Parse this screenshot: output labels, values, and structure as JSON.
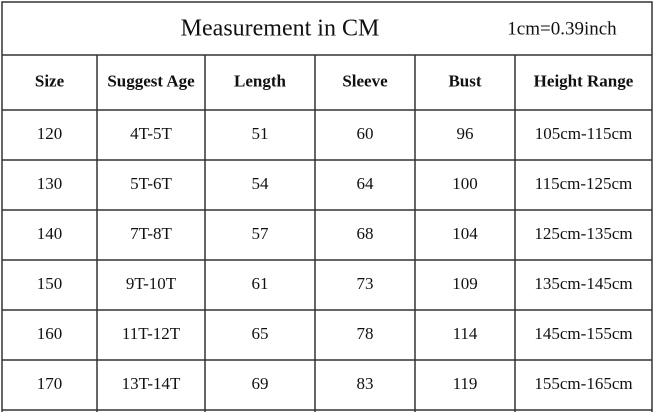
{
  "header": {
    "title": "Measurement in CM",
    "note": "1cm=0.39inch"
  },
  "table": {
    "columns": [
      "Size",
      "Suggest Age",
      "Length",
      "Sleeve",
      "Bust",
      "Height Range"
    ],
    "rows": [
      [
        "120",
        "4T-5T",
        "51",
        "60",
        "96",
        "105cm-115cm"
      ],
      [
        "130",
        "5T-6T",
        "54",
        "64",
        "100",
        "115cm-125cm"
      ],
      [
        "140",
        "7T-8T",
        "57",
        "68",
        "104",
        "125cm-135cm"
      ],
      [
        "150",
        "9T-10T",
        "61",
        "73",
        "109",
        "135cm-145cm"
      ],
      [
        "160",
        "11T-12T",
        "65",
        "78",
        "114",
        "145cm-155cm"
      ],
      [
        "170",
        "13T-14T",
        "69",
        "83",
        "119",
        "155cm-165cm"
      ]
    ]
  }
}
